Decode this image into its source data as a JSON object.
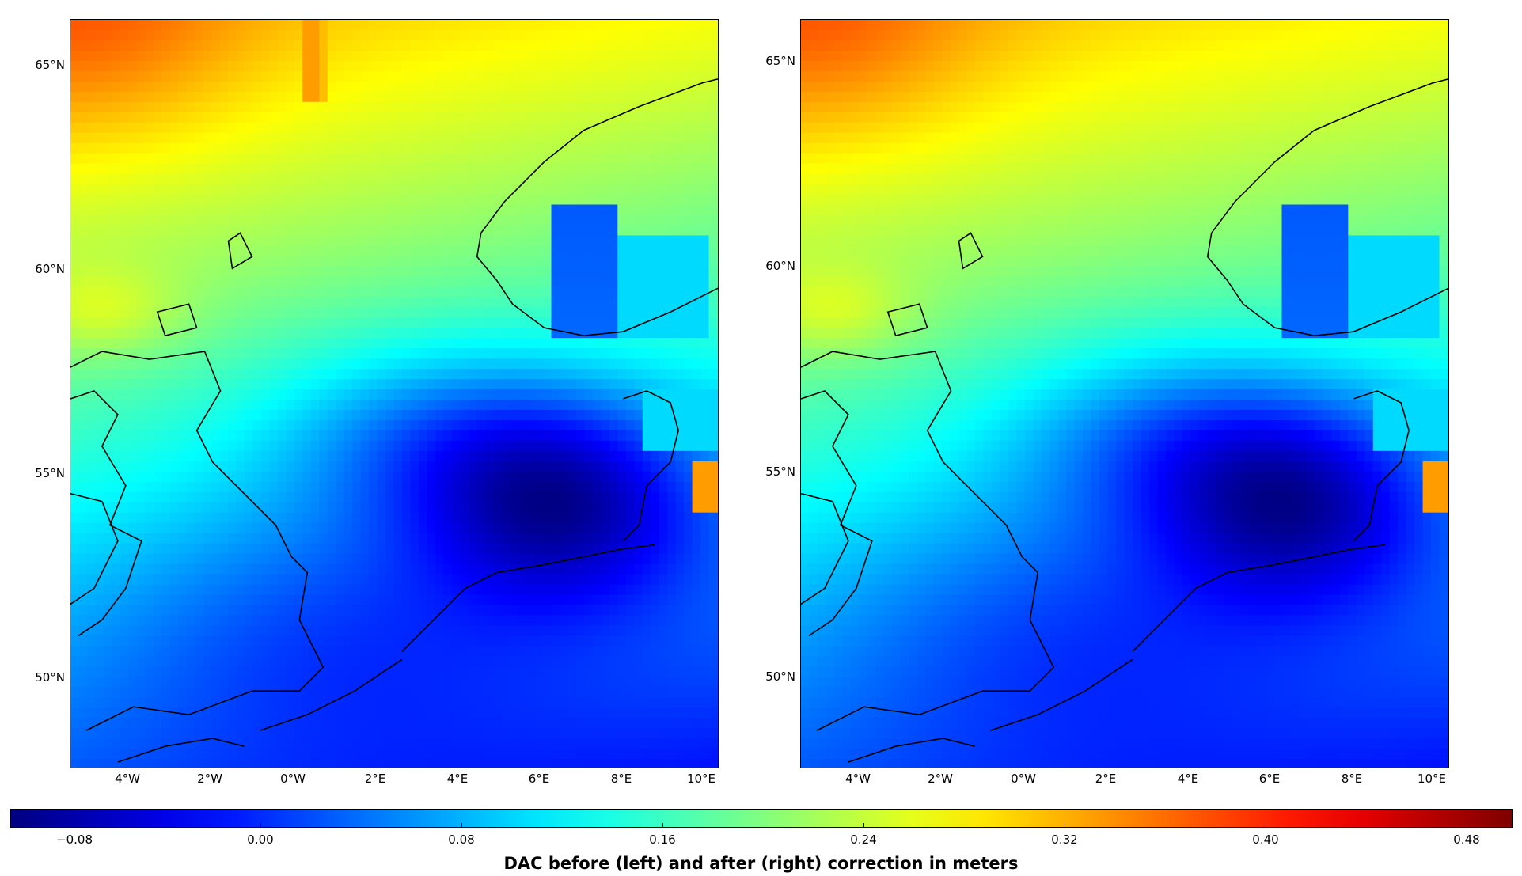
{
  "colorbar": {
    "label": "DAC before (left) and after (right) correction in meters",
    "ticks": [
      "−0.08",
      "0.00",
      "0.08",
      "0.16",
      "0.24",
      "0.32",
      "0.40",
      "0.48"
    ],
    "tick_values": [
      -0.08,
      0.0,
      0.08,
      0.16,
      0.24,
      0.32,
      0.4,
      0.48
    ],
    "range": [
      -0.113,
      0.515
    ],
    "colormap": "jet"
  },
  "panels": [
    {
      "id": "left",
      "lat_ticks": [
        "65°N",
        "60°N",
        "55°N",
        "50°N"
      ],
      "lon_ticks": [
        "4°W",
        "2°W",
        "0°W",
        "2°E",
        "4°E",
        "6°E",
        "8°E",
        "10°E"
      ],
      "stripe_artifact": true
    },
    {
      "id": "right",
      "lat_ticks": [
        "65°N",
        "60°N",
        "55°N",
        "50°N"
      ],
      "lon_ticks": [
        "4°W",
        "2°W",
        "0°W",
        "2°E",
        "4°E",
        "6°E",
        "8°E",
        "10°E"
      ],
      "stripe_artifact": false
    }
  ],
  "extent": {
    "lon": [
      -5.5,
      10.3
    ],
    "lat": [
      47.8,
      66.1
    ]
  },
  "colors": {
    "coastline": "#000000",
    "frame": "#000000"
  }
}
